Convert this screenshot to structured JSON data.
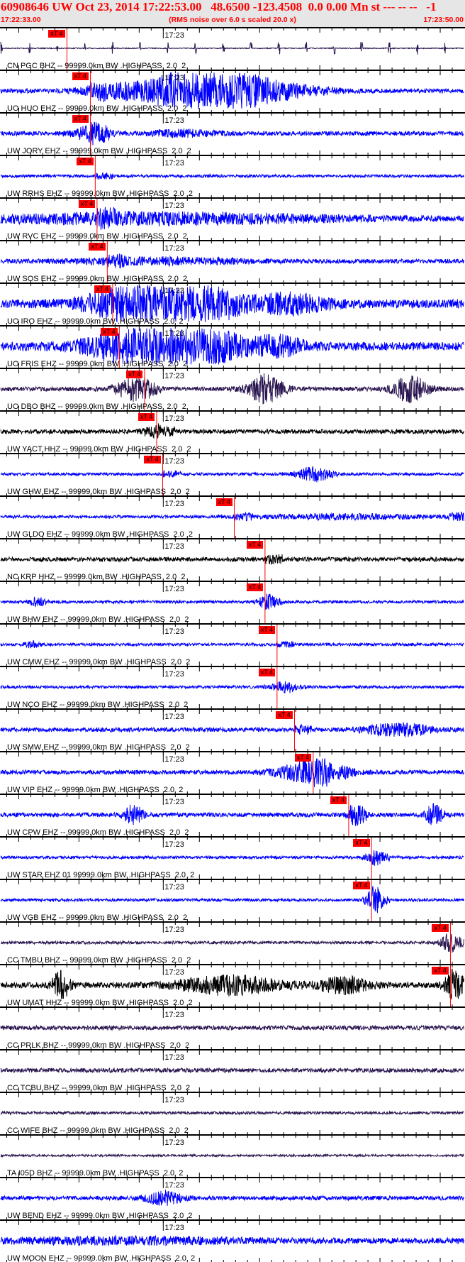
{
  "header": {
    "title": "60908646 UW Oct 23, 2014 17:22:53.00   48.6500 -123.4508  0.0 0.00 Mn st --- -- --   -1",
    "start_time": "17:22:33.00",
    "end_time": "17:23:50.00",
    "note": "(RMS noise over 6.0 s scaled 20.0 x)"
  },
  "window": {
    "start": "17:22:33",
    "end": "17:23:50",
    "duration_s": 77,
    "minute_mark_label": "17:23",
    "minute_mark_offset_s": 27
  },
  "colors": {
    "header_text": "#ff0000",
    "pick": "#ff0000",
    "blue": "#0000ff",
    "navy": "#2a1650",
    "black": "#000000",
    "header_bg": "#e6e6e6"
  },
  "pick_label": "xT 4",
  "traces": [
    {
      "label": "CN PGC BHZ -- 99999.0km BW .HIGHPASS  2.0  2",
      "color": "navy",
      "pick_s": 11
    },
    {
      "label": "UO HUO EHZ -- 99999.0km BW .HIGHPASS  2.0  2",
      "color": "blue",
      "pick_s": 14.9
    },
    {
      "label": "UW JORY EHZ -- 99999.0km BW .HIGHPASS  2.0  2",
      "color": "blue",
      "pick_s": 14.9
    },
    {
      "label": "UW RRHS EHZ -- 99999.0km BW .HIGHPASS  2.0  2",
      "color": "blue",
      "pick_s": 15.7
    },
    {
      "label": "UW RVC EHZ -- 99999.0km BW .HIGHPASS  2.0  2",
      "color": "blue",
      "pick_s": 16
    },
    {
      "label": "UW SOS EHZ -- 99999.0km BW .HIGHPASS  2.0  2",
      "color": "blue",
      "pick_s": 17.7
    },
    {
      "label": "UO IRO EHZ -- 99999.0km BW .HIGHPASS  2.0  2",
      "color": "blue",
      "pick_s": 18.6
    },
    {
      "label": "UO FRIS EHZ -- 99999.0km BW .HIGHPASS  2.0  2",
      "color": "blue",
      "pick_s": 19.7
    },
    {
      "label": "UO DBO BHZ -- 99999.0km BW .HIGHPASS  2.0  2",
      "color": "navy",
      "pick_s": 23.9
    },
    {
      "label": "UW YACT HHZ -- 99999.0km BW .HIGHPASS  2.0  2",
      "color": "black",
      "pick_s": 25.9
    },
    {
      "label": "UW GHW EHZ -- 99999.0km BW .HIGHPASS  2.0  2",
      "color": "blue",
      "pick_s": 26.9
    },
    {
      "label": "UW GLDO EHZ -- 99999.0km BW .HIGHPASS  2.0  2",
      "color": "blue",
      "pick_s": 38.8
    },
    {
      "label": "NC KRP HHZ -- 99999.0km BW .HIGHPASS  2.0  2",
      "color": "black",
      "pick_s": 43.9
    },
    {
      "label": "UW BHW EHZ -- 99999.0km BW .HIGHPASS  2.0  2",
      "color": "blue",
      "pick_s": 43.9
    },
    {
      "label": "UW CMW EHZ -- 99999.0km BW .HIGHPASS  2.0  2",
      "color": "blue",
      "pick_s": 45.9
    },
    {
      "label": "UW NCO EHZ -- 99999.0km BW .HIGHPASS  2.0  2",
      "color": "blue",
      "pick_s": 45.9
    },
    {
      "label": "UW SMW EHZ -- 99999.0km BW .HIGHPASS  2.0  2",
      "color": "blue",
      "pick_s": 48.8
    },
    {
      "label": "UW VIP EHZ -- 99999.0km BW .HIGHPASS  2.0  2",
      "color": "blue",
      "pick_s": 51.9
    },
    {
      "label": "UW CPW EHZ -- 99999.0km BW .HIGHPASS  2.0  2",
      "color": "blue",
      "pick_s": 57.8
    },
    {
      "label": "UW STAR EHZ 01 99999.0km BW .HIGHPASS  2.0  2",
      "color": "blue",
      "pick_s": 61.6
    },
    {
      "label": "UW VGB EHZ -- 99999.0km BW .HIGHPASS  2.0  2",
      "color": "blue",
      "pick_s": 61.6
    },
    {
      "label": "CC TMBU BHZ -- 99999.0km BW .HIGHPASS  2.0  2",
      "color": "navy",
      "pick_s": 74.7
    },
    {
      "label": "UW UMAT HHZ -- 99999.0km BW .HIGHPASS  2.0  2",
      "color": "black",
      "pick_s": 74.7
    },
    {
      "label": "CC PRLK BHZ -- 99999.0km BW .HIGHPASS  2.0  2",
      "color": "navy"
    },
    {
      "label": "CC TCBU BHZ -- 99999.0km BW .HIGHPASS  2.0  2",
      "color": "navy"
    },
    {
      "label": "CC WIFE BHZ -- 99999.0km BW .HIGHPASS  2.0  2",
      "color": "navy"
    },
    {
      "label": "TA I05D BHZ -- 99999.0km BW .HIGHPASS  2.0  2",
      "color": "navy"
    },
    {
      "label": "UW BEND EHZ -- 99999.0km BW .HIGHPASS  2.0  2",
      "color": "blue"
    },
    {
      "label": "UW MOON EHZ -- 99999.0km BW .HIGHPASS  2.0  2",
      "color": "blue"
    }
  ]
}
